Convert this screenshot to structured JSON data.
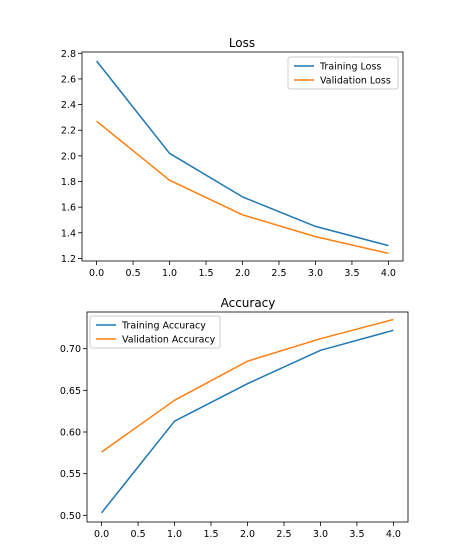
{
  "colors": {
    "training": "#1f77b4",
    "validation": "#ff7f0e",
    "axes": "#000000",
    "legend_border": "#cccccc"
  },
  "chart_data": [
    {
      "type": "line",
      "title": "Loss",
      "xlabel": "",
      "ylabel": "",
      "x": [
        0,
        1,
        2,
        3,
        4
      ],
      "xlim": [
        -0.2,
        4.2
      ],
      "ylim": [
        1.18,
        2.81
      ],
      "xticks": [
        0.0,
        0.5,
        1.0,
        1.5,
        2.0,
        2.5,
        3.0,
        3.5,
        4.0
      ],
      "xtick_labels": [
        "0.0",
        "0.5",
        "1.0",
        "1.5",
        "2.0",
        "2.5",
        "3.0",
        "3.5",
        "4.0"
      ],
      "yticks": [
        1.2,
        1.4,
        1.6,
        1.8,
        2.0,
        2.2,
        2.4,
        2.6,
        2.8
      ],
      "ytick_labels": [
        "1.2",
        "1.4",
        "1.6",
        "1.8",
        "2.0",
        "2.2",
        "2.4",
        "2.6",
        "2.8"
      ],
      "grid": false,
      "legend_position": "upper right",
      "series": [
        {
          "name": "Training Loss",
          "values": [
            2.74,
            2.02,
            1.68,
            1.45,
            1.3
          ]
        },
        {
          "name": "Validation Loss",
          "values": [
            2.27,
            1.81,
            1.54,
            1.37,
            1.24
          ]
        }
      ]
    },
    {
      "type": "line",
      "title": "Accuracy",
      "xlabel": "",
      "ylabel": "",
      "x": [
        0,
        1,
        2,
        3,
        4
      ],
      "xlim": [
        -0.2,
        4.2
      ],
      "ylim": [
        0.492,
        0.744
      ],
      "xticks": [
        0.0,
        0.5,
        1.0,
        1.5,
        2.0,
        2.5,
        3.0,
        3.5,
        4.0
      ],
      "xtick_labels": [
        "0.0",
        "0.5",
        "1.0",
        "1.5",
        "2.0",
        "2.5",
        "3.0",
        "3.5",
        "4.0"
      ],
      "yticks": [
        0.5,
        0.55,
        0.6,
        0.65,
        0.7
      ],
      "ytick_labels": [
        "0.50",
        "0.55",
        "0.60",
        "0.65",
        "0.70"
      ],
      "grid": false,
      "legend_position": "upper left",
      "series": [
        {
          "name": "Training Accuracy",
          "values": [
            0.503,
            0.613,
            0.658,
            0.698,
            0.722
          ]
        },
        {
          "name": "Validation Accuracy",
          "values": [
            0.576,
            0.638,
            0.685,
            0.712,
            0.735
          ]
        }
      ]
    }
  ]
}
